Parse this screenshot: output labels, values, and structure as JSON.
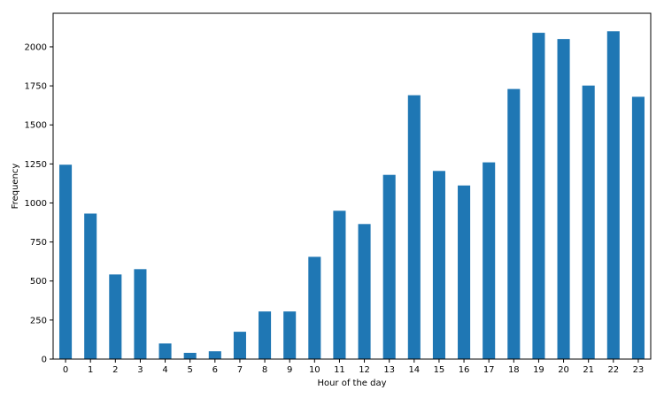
{
  "chart_data": {
    "type": "bar",
    "title": "",
    "xlabel": "Hour of the day",
    "ylabel": "Frequency",
    "categories": [
      "0",
      "1",
      "2",
      "3",
      "4",
      "5",
      "6",
      "7",
      "8",
      "9",
      "10",
      "11",
      "12",
      "13",
      "14",
      "15",
      "16",
      "17",
      "18",
      "19",
      "20",
      "21",
      "22",
      "23"
    ],
    "values": [
      1245,
      932,
      542,
      576,
      100,
      40,
      50,
      175,
      305,
      305,
      655,
      950,
      865,
      1180,
      1690,
      1205,
      1112,
      1260,
      1730,
      2090,
      2050,
      1752,
      2100,
      1680
    ],
    "ylim": [
      0,
      2215
    ],
    "yticks": [
      0,
      250,
      500,
      750,
      1000,
      1250,
      1500,
      1750,
      2000
    ],
    "grid": false,
    "legend": "none",
    "bar_color": "#1f77b4"
  }
}
